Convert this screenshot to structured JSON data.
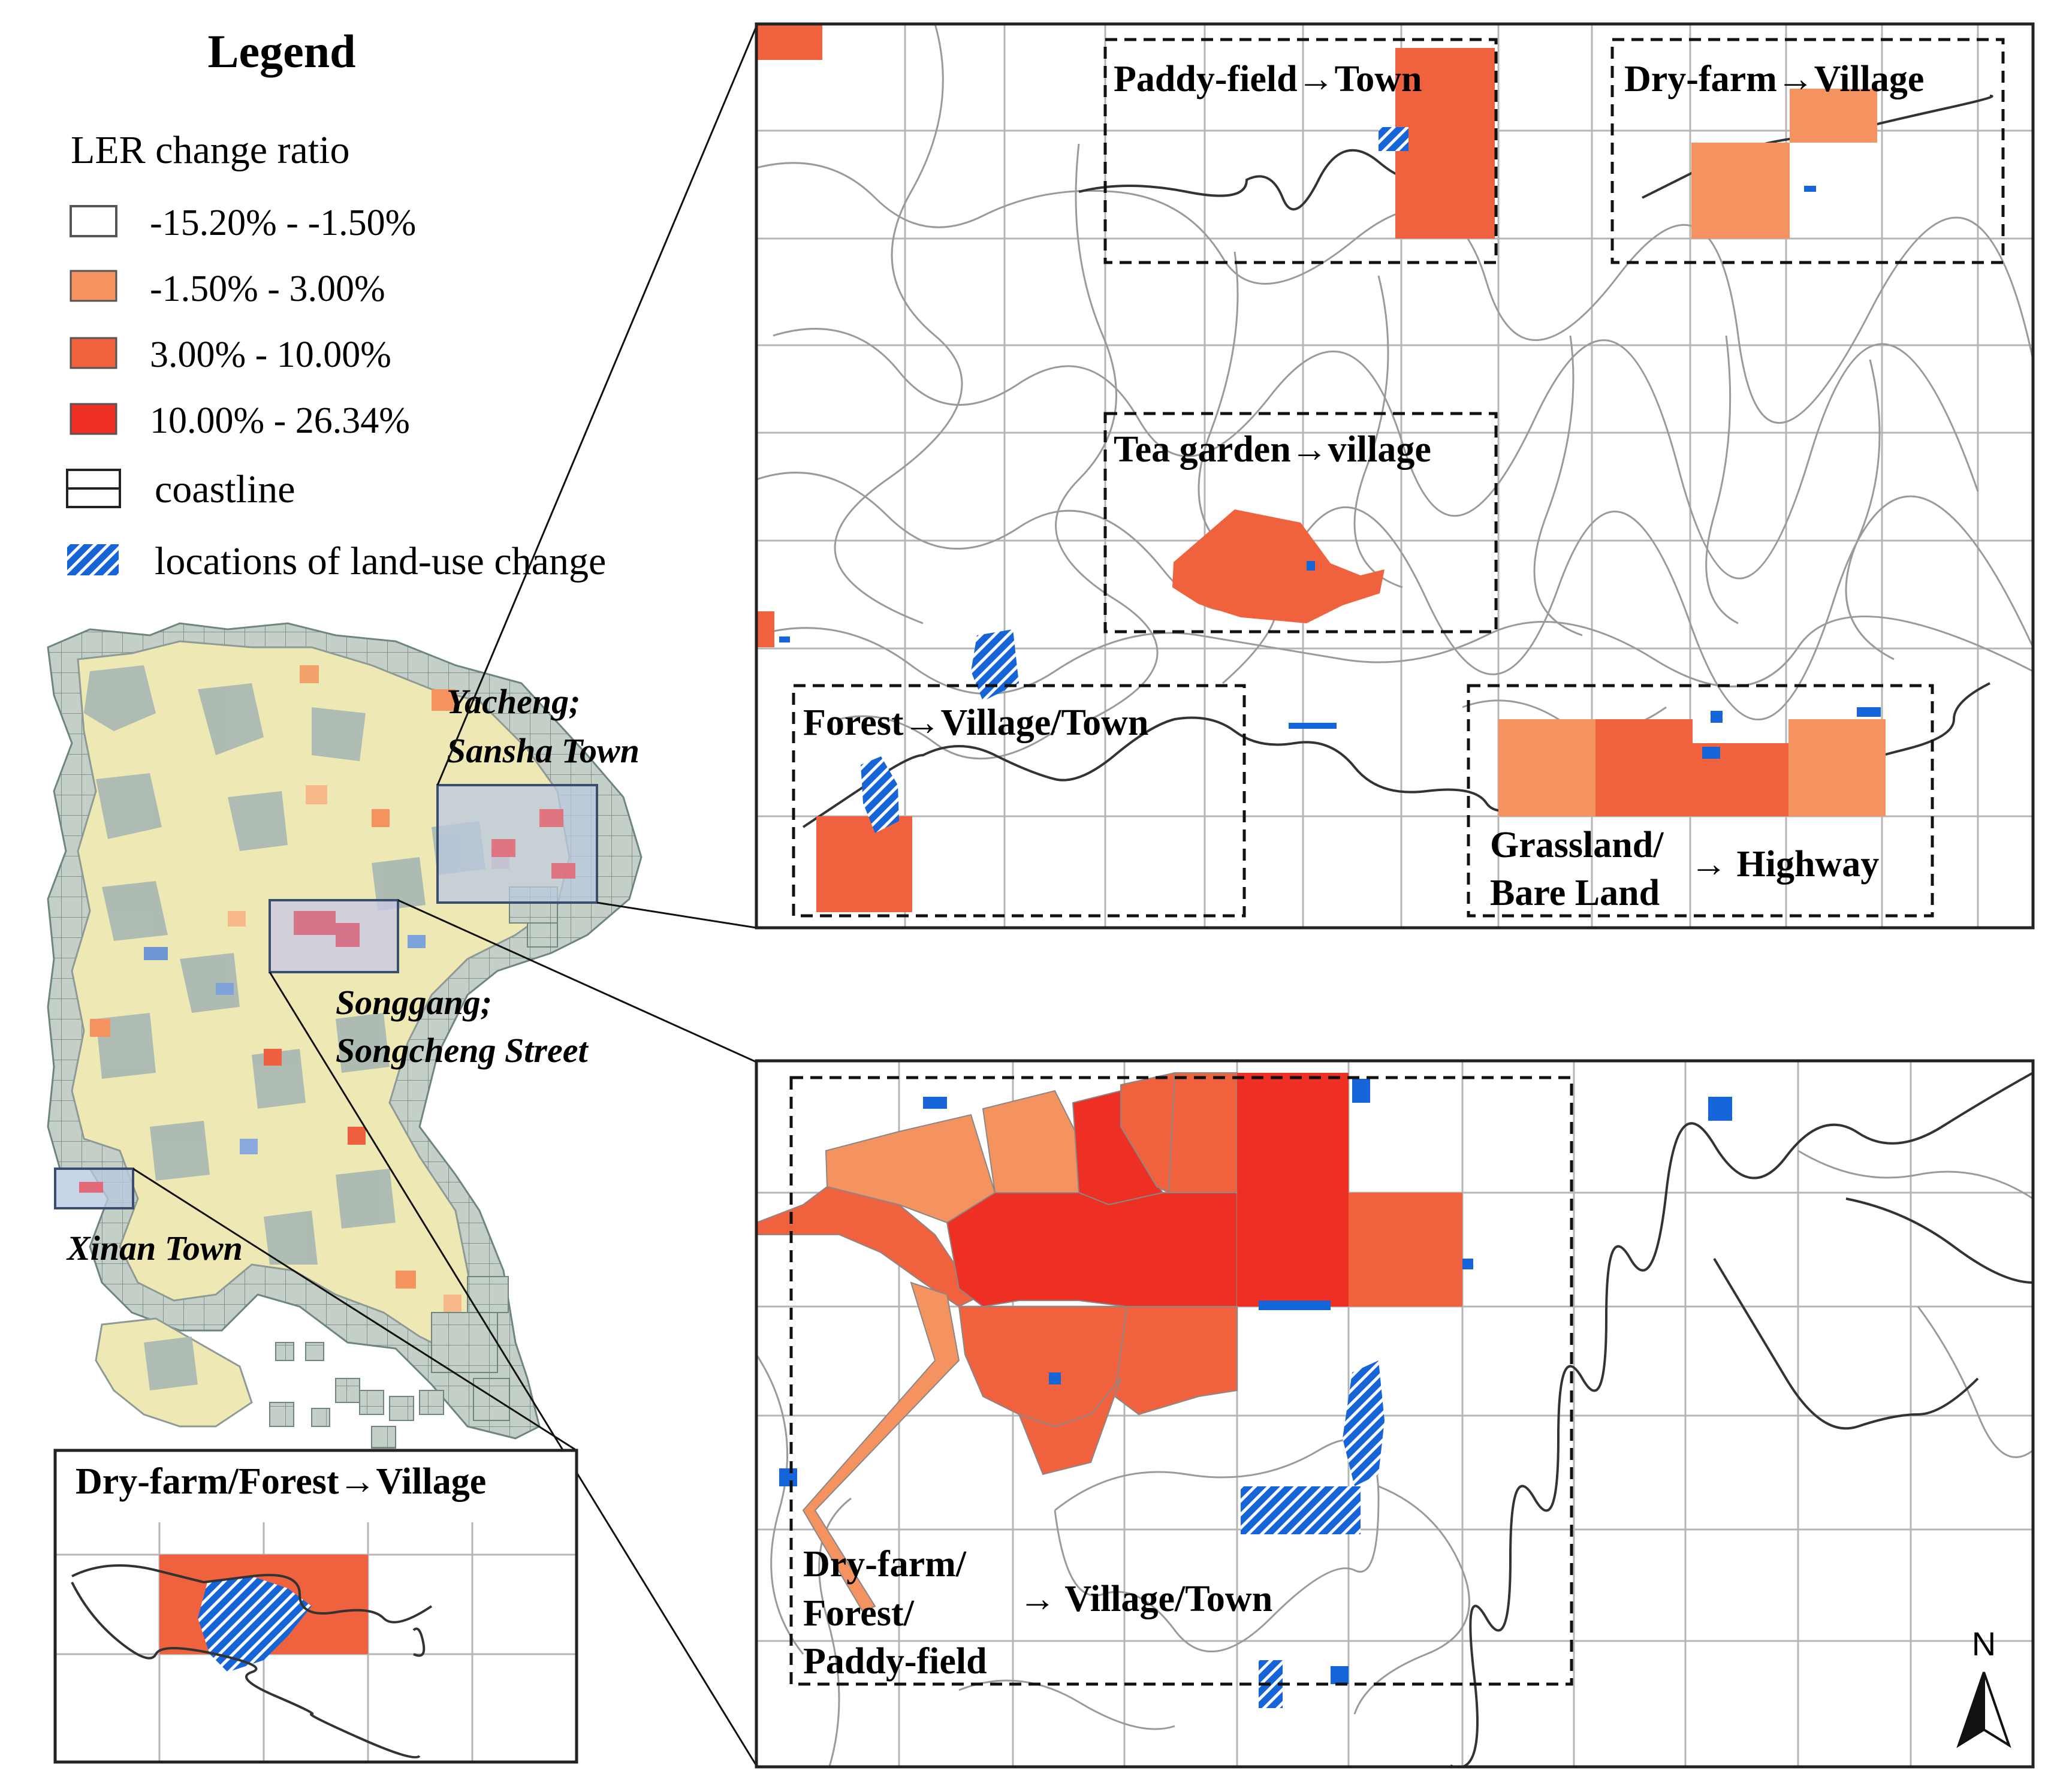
{
  "legend": {
    "title": "Legend",
    "subtitle": "LER change ratio",
    "classes": [
      {
        "label": "-15.20% -  -1.50%",
        "color": "#ffffff"
      },
      {
        "label": "-1.50% -  3.00%",
        "color": "#f4935f"
      },
      {
        "label": "3.00% -  10.00%",
        "color": "#f0623e"
      },
      {
        "label": "10.00% -  26.34%",
        "color": "#ee2f24"
      }
    ],
    "coastline_label": "coastline",
    "change_label": "locations of land-use change",
    "change_color": "#1565d8"
  },
  "overview": {
    "regions": [
      {
        "label_line1": "Yacheng;",
        "label_line2": "Sansha Town"
      },
      {
        "label_line1": "Songgang;",
        "label_line2": "Songcheng Street"
      },
      {
        "label_line1": "Xinan Town",
        "label_line2": ""
      }
    ],
    "base_color": "#eee9b4",
    "grid_color": "#9aaba8"
  },
  "panel_top": {
    "boxes": [
      {
        "label": "Paddy-field→Town"
      },
      {
        "label": "Dry-farm→Village"
      },
      {
        "label": "Tea garden→village"
      },
      {
        "label": "Forest→Village/Town"
      },
      {
        "label_line1": "Grassland/",
        "label_line2": "Bare Land",
        "arrow": "→ Highway"
      }
    ]
  },
  "panel_bottom": {
    "box": {
      "line1": "Dry-farm/",
      "line2": "Forest/",
      "line3": "Paddy-field",
      "arrow": "→ Village/Town"
    }
  },
  "panel_left": {
    "label": "Dry-farm/Forest→Village"
  },
  "north_arrow": {
    "label": "N"
  }
}
